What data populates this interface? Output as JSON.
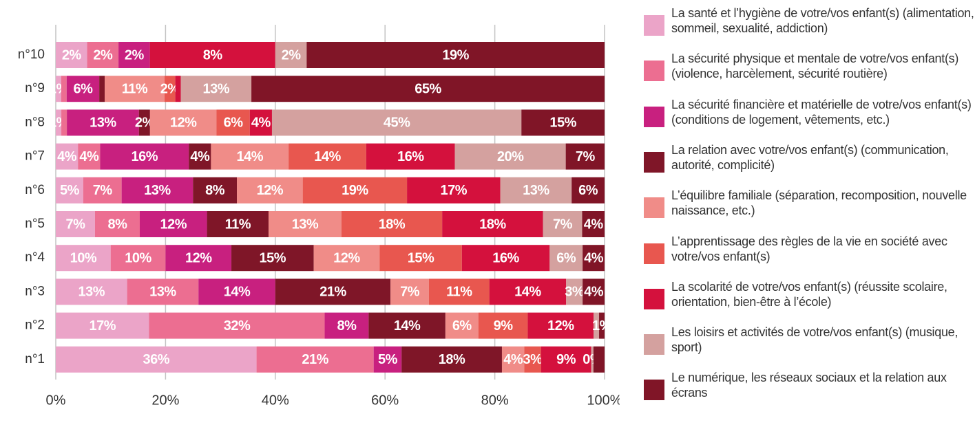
{
  "chart_data": {
    "type": "stacked-bar-horizontal",
    "categories": [
      "n°10",
      "n°9",
      "n°8",
      "n°7",
      "n°6",
      "n°5",
      "n°4",
      "n°3",
      "n°2",
      "n°1"
    ],
    "xlim": [
      0,
      100
    ],
    "xticks": [
      {
        "value": 0,
        "label": "0%"
      },
      {
        "value": 20,
        "label": "20%"
      },
      {
        "value": 40,
        "label": "40%"
      },
      {
        "value": 60,
        "label": "60%"
      },
      {
        "value": 80,
        "label": "80%"
      },
      {
        "value": 100,
        "label": "100%"
      }
    ],
    "grid": true,
    "legend": "right",
    "series": [
      {
        "name": "La santé et l’hygiène de votre/vos enfant(s) (alimentation, sommeil, sexualité, addiction)",
        "color": "#eba4c8",
        "values": [
          2,
          1,
          1,
          4,
          5,
          7,
          10,
          13,
          17,
          36
        ],
        "value_labels": [
          "2%",
          "1%",
          "1%",
          "4%",
          "5%",
          "7%",
          "10%",
          "13%",
          "17%",
          "36%"
        ]
      },
      {
        "name": "La sécurité physique et mentale de votre/vos enfant(s) (violence, harcèlement, sécurité routière)",
        "color": "#ec6e91",
        "values": [
          2,
          1,
          1,
          4,
          7,
          8,
          10,
          13,
          32,
          21
        ],
        "value_labels": [
          "2%",
          null,
          null,
          "4%",
          "7%",
          "8%",
          "10%",
          "13%",
          "32%",
          "21%"
        ]
      },
      {
        "name": "La sécurité financière et matérielle de votre/vos enfant(s) (conditions de logement, vêtements, etc.)",
        "color": "#c8207f",
        "values": [
          2,
          6,
          13,
          16,
          13,
          12,
          12,
          14,
          8,
          5
        ],
        "value_labels": [
          "2%",
          "6%",
          "13%",
          "16%",
          "13%",
          "12%",
          "12%",
          "14%",
          "8%",
          "5%"
        ]
      },
      {
        "name": "La relation avec votre/vos enfant(s) (communication, autorité, complicité)",
        "color": "#7f1628",
        "values": [
          null,
          1,
          2,
          4,
          8,
          11,
          15,
          21,
          14,
          18
        ],
        "value_labels": [
          null,
          null,
          "2%",
          "4%",
          "8%",
          "11%",
          "15%",
          "21%",
          "14%",
          "18%"
        ]
      },
      {
        "name": "L’équilibre familiale (séparation, recomposition, nouvelle naissance, etc.)",
        "color": "#f08c88",
        "values": [
          null,
          11,
          12,
          14,
          12,
          13,
          12,
          7,
          6,
          4
        ],
        "value_labels": [
          null,
          "11%",
          "12%",
          "14%",
          "12%",
          "13%",
          "12%",
          "7%",
          "6%",
          "4%"
        ]
      },
      {
        "name": "L’apprentissage des règles de la vie en société avec votre/vos enfant(s)",
        "color": "#e8574f",
        "values": [
          null,
          2,
          6,
          14,
          19,
          18,
          15,
          11,
          9,
          3
        ],
        "value_labels": [
          null,
          "2%",
          "6%",
          "14%",
          "19%",
          "18%",
          "15%",
          "11%",
          "9%",
          "3%"
        ]
      },
      {
        "name": "La scolarité de votre/vos enfant(s) (réussite scolaire, orientation, bien-être à l’école)",
        "color": "#d4113d",
        "values": [
          8,
          1,
          4,
          16,
          17,
          18,
          16,
          14,
          12,
          9
        ],
        "value_labels": [
          "8%",
          null,
          "4%",
          "16%",
          "17%",
          "18%",
          "16%",
          "14%",
          "12%",
          "9%"
        ]
      },
      {
        "name": "Les loisirs et activités de votre/vos enfant(s) (musique, sport)",
        "color": "#d4a19f",
        "values": [
          2,
          13,
          45,
          20,
          13,
          7,
          6,
          3,
          1,
          0.4
        ],
        "value_labels": [
          "2%",
          "13%",
          "45%",
          "20%",
          "13%",
          "7%",
          "6%",
          "3%",
          null,
          "0%"
        ]
      },
      {
        "name": "Le numérique, les réseaux sociaux et la relation aux écrans",
        "color": "#801527",
        "values": [
          19,
          65,
          15,
          7,
          6,
          4,
          4,
          4,
          1,
          2
        ],
        "value_labels": [
          "19%",
          "65%",
          "15%",
          "7%",
          "6%",
          "4%",
          "4%",
          "4%",
          "1%",
          null
        ]
      }
    ]
  }
}
